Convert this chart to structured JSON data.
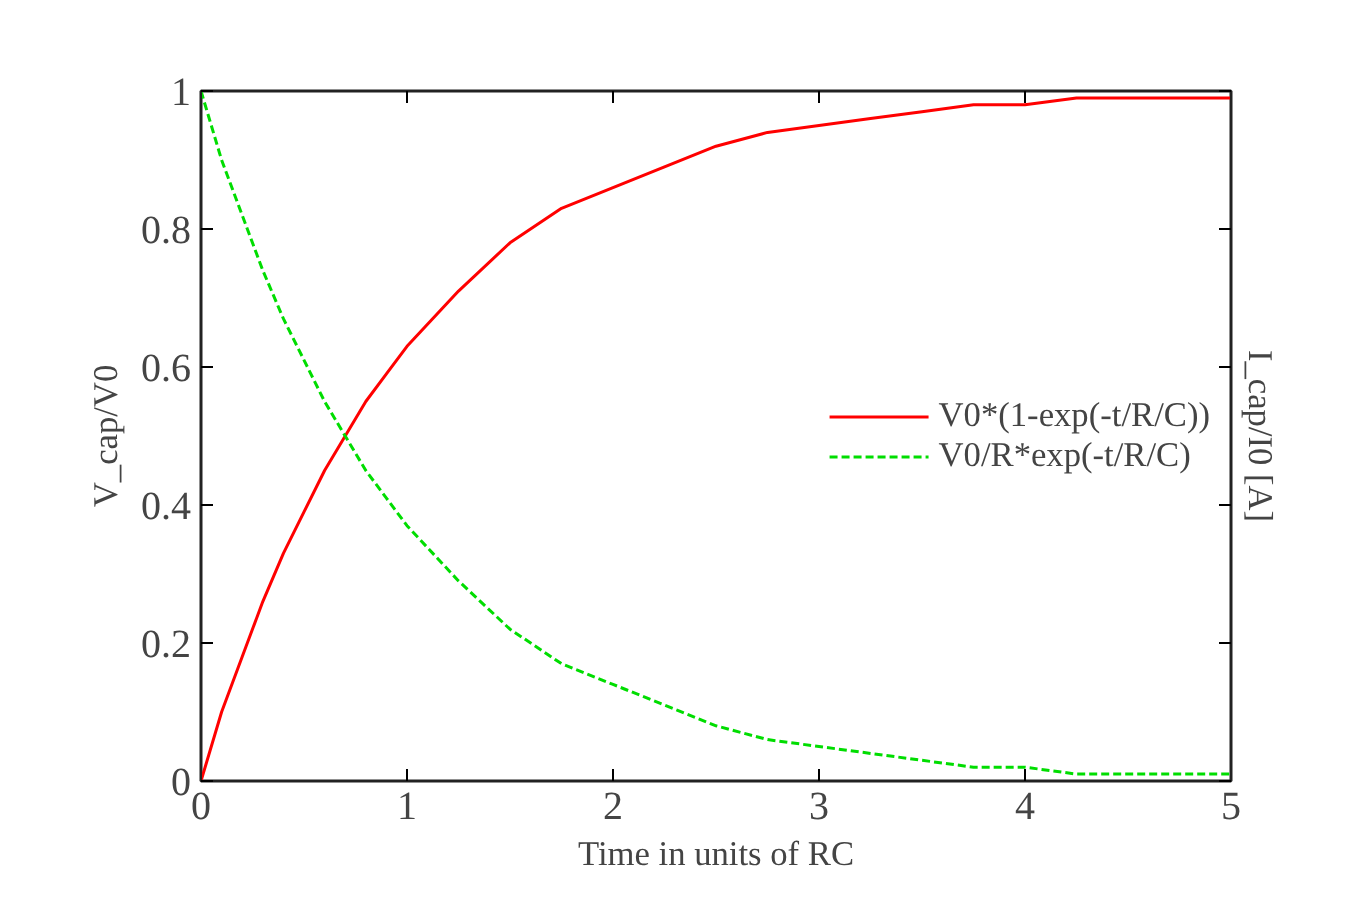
{
  "chart_data": {
    "type": "line",
    "xlabel": "Time in units of RC",
    "ylabel": "V_cap/V0",
    "y2label": "I_cap/I0 [A]",
    "x": [
      0,
      0.1,
      0.2,
      0.3,
      0.4,
      0.5,
      0.6,
      0.7,
      0.8,
      0.9,
      1,
      1.25,
      1.5,
      1.75,
      2,
      2.25,
      2.5,
      2.75,
      3,
      3.25,
      3.5,
      3.75,
      4,
      4.25,
      4.5,
      4.75,
      5
    ],
    "series": [
      {
        "name": "V0*(1-exp(-t/R/C))",
        "color": "#ff0000",
        "line_style": "solid",
        "values": [
          0,
          0.1,
          0.18,
          0.26,
          0.33,
          0.39,
          0.45,
          0.5,
          0.55,
          0.59,
          0.63,
          0.71,
          0.78,
          0.83,
          0.86,
          0.89,
          0.92,
          0.94,
          0.95,
          0.96,
          0.97,
          0.98,
          0.98,
          0.99,
          0.99,
          0.99,
          0.99
        ]
      },
      {
        "name": "V0/R*exp(-t/R/C)",
        "color": "#00dd00",
        "line_style": "dashed",
        "values": [
          1,
          0.9,
          0.82,
          0.74,
          0.67,
          0.61,
          0.55,
          0.5,
          0.45,
          0.41,
          0.37,
          0.29,
          0.22,
          0.17,
          0.14,
          0.11,
          0.08,
          0.06,
          0.05,
          0.04,
          0.03,
          0.02,
          0.02,
          0.01,
          0.01,
          0.01,
          0.01
        ]
      }
    ],
    "xlim": [
      0,
      5
    ],
    "xticks": [
      0,
      1,
      2,
      3,
      4,
      5
    ],
    "ylim": [
      0,
      1
    ],
    "yticks": [
      0,
      0.2,
      0.4,
      0.6,
      0.8,
      1
    ],
    "grid": false,
    "legend": "right"
  }
}
